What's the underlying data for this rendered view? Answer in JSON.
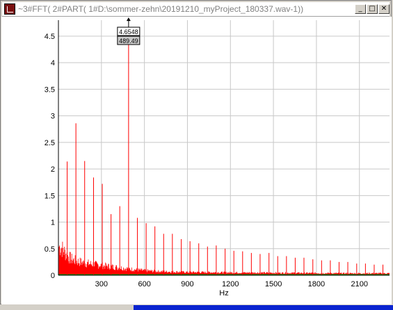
{
  "window": {
    "title": "~3#FFT( 2#PART( 1#D:\\sommer-zehn\\20191210_myProject_180337.wav-1))",
    "minimize_label": "_",
    "maximize_label": "□",
    "close_label": "✕"
  },
  "chart_data": {
    "type": "line",
    "xlabel": "Hz",
    "ylabel": "",
    "xlim": [
      0,
      2310
    ],
    "ylim": [
      0,
      4.8
    ],
    "x_ticks": [
      300,
      600,
      900,
      1200,
      1500,
      1800,
      2100
    ],
    "y_ticks": [
      0,
      0.5,
      1,
      1.5,
      2,
      2.5,
      3,
      3.5,
      4,
      4.5
    ],
    "grid": true,
    "series_color": "#ff0000",
    "baseline_color": "#00a000",
    "peaks": [
      {
        "x": 61,
        "y": 2.14
      },
      {
        "x": 122,
        "y": 2.86
      },
      {
        "x": 183,
        "y": 2.15
      },
      {
        "x": 245,
        "y": 1.84
      },
      {
        "x": 306,
        "y": 1.72
      },
      {
        "x": 367,
        "y": 1.15
      },
      {
        "x": 428,
        "y": 1.3
      },
      {
        "x": 489.49,
        "y": 4.6548
      },
      {
        "x": 551,
        "y": 1.08
      },
      {
        "x": 612,
        "y": 0.98
      },
      {
        "x": 673,
        "y": 0.92
      },
      {
        "x": 734,
        "y": 0.78
      },
      {
        "x": 795,
        "y": 0.78
      },
      {
        "x": 857,
        "y": 0.68
      },
      {
        "x": 918,
        "y": 0.64
      },
      {
        "x": 979,
        "y": 0.6
      },
      {
        "x": 1040,
        "y": 0.54
      },
      {
        "x": 1101,
        "y": 0.56
      },
      {
        "x": 1163,
        "y": 0.5
      },
      {
        "x": 1224,
        "y": 0.46
      },
      {
        "x": 1285,
        "y": 0.45
      },
      {
        "x": 1346,
        "y": 0.42
      },
      {
        "x": 1407,
        "y": 0.4
      },
      {
        "x": 1469,
        "y": 0.42
      },
      {
        "x": 1530,
        "y": 0.36
      },
      {
        "x": 1591,
        "y": 0.36
      },
      {
        "x": 1652,
        "y": 0.33
      },
      {
        "x": 1713,
        "y": 0.33
      },
      {
        "x": 1775,
        "y": 0.3
      },
      {
        "x": 1836,
        "y": 0.28
      },
      {
        "x": 1897,
        "y": 0.28
      },
      {
        "x": 1958,
        "y": 0.25
      },
      {
        "x": 2019,
        "y": 0.25
      },
      {
        "x": 2081,
        "y": 0.22
      },
      {
        "x": 2142,
        "y": 0.22
      },
      {
        "x": 2203,
        "y": 0.2
      },
      {
        "x": 2264,
        "y": 0.2
      }
    ],
    "noise_envelope": [
      {
        "x": 0,
        "y": 0.75
      },
      {
        "x": 20,
        "y": 0.72
      },
      {
        "x": 40,
        "y": 0.62
      },
      {
        "x": 60,
        "y": 0.52
      },
      {
        "x": 90,
        "y": 0.42
      },
      {
        "x": 130,
        "y": 0.36
      },
      {
        "x": 180,
        "y": 0.32
      },
      {
        "x": 250,
        "y": 0.28
      },
      {
        "x": 330,
        "y": 0.24
      },
      {
        "x": 420,
        "y": 0.2
      },
      {
        "x": 500,
        "y": 0.16
      },
      {
        "x": 600,
        "y": 0.12
      },
      {
        "x": 700,
        "y": 0.1
      },
      {
        "x": 900,
        "y": 0.08
      },
      {
        "x": 1200,
        "y": 0.07
      },
      {
        "x": 1600,
        "y": 0.06
      },
      {
        "x": 2000,
        "y": 0.05
      },
      {
        "x": 2310,
        "y": 0.05
      }
    ],
    "marker": {
      "value_label": "4.6548",
      "freq_label": "489.49",
      "x": 489.49,
      "y": 4.6548
    }
  }
}
